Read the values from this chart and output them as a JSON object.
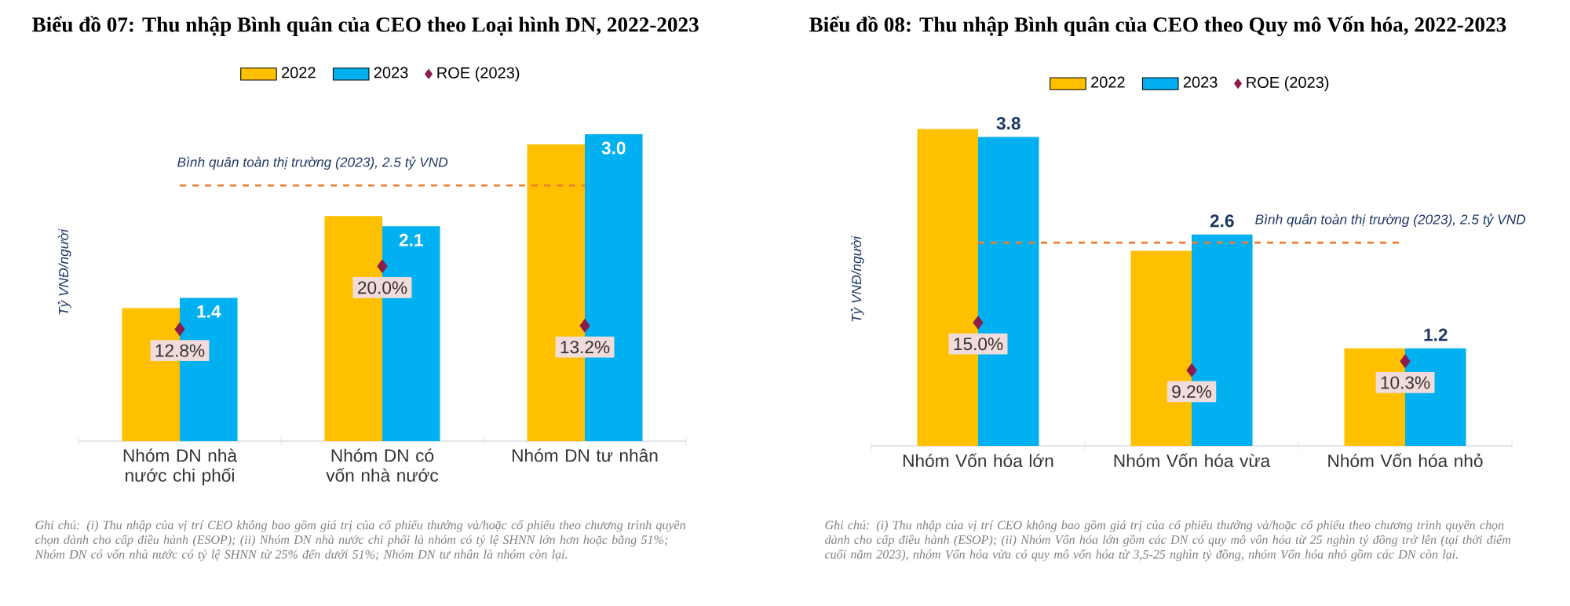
{
  "chart_data": [
    {
      "type": "bar",
      "title": "Biểu đồ 07: Thu nhập Bình quân của CEO theo Loại hình DN, 2022-2023",
      "ylabel": "Tỷ VNĐ/người",
      "categories": [
        "Nhóm DN nhà nước chi phối",
        "Nhóm DN có vốn nhà nước",
        "Nhóm DN tư nhân"
      ],
      "series": [
        {
          "name": "2022",
          "color": "#ffc000",
          "values": [
            1.3,
            2.2,
            2.9
          ]
        },
        {
          "name": "2023",
          "color": "#00b0f0",
          "values": [
            1.4,
            2.1,
            3.0
          ],
          "value_labels": [
            "1.4",
            "2.1",
            "3.0"
          ]
        },
        {
          "name": "ROE (2023)",
          "type": "scatter",
          "axis": "y2",
          "marker": "diamond",
          "color": "#8b1c4c",
          "values": [
            12.8,
            20.0,
            13.2
          ],
          "value_labels": [
            "12.8%",
            "20.0%",
            "13.2%"
          ]
        }
      ],
      "ref_lines": [
        {
          "axis": "y",
          "value": 2.5,
          "label": "Bình quân toàn thị trường (2023), 2.5 tỷ VND",
          "color": "#ed7d31",
          "line_style": "dashed"
        }
      ],
      "legend": "top",
      "annotations": [
        "Ghi chú: (i) Thu nhập của vị trí CEO không bao gồm giá trị của cổ phiếu thưởng và/hoặc cổ phiếu theo chương trình quyền chọn dành cho cấp điều hành (ESOP); (ii) Nhóm DN nhà nước chi phối là nhóm có tỷ lệ SHNN lớn hơn hoặc bằng 51%; Nhóm DN có vốn nhà nước có tỷ lệ SHNN từ 25% đến dưới 51%; Nhóm DN tư nhân là nhóm còn lại."
      ]
    },
    {
      "type": "bar",
      "title": "Biểu đồ 08: Thu nhập Bình quân của CEO theo Quy mô Vốn hóa, 2022-2023",
      "ylabel": "Tỷ VNĐ/người",
      "categories": [
        "Nhóm Vốn hóa lớn",
        "Nhóm Vốn hóa vừa",
        "Nhóm Vốn hóa nhỏ"
      ],
      "series": [
        {
          "name": "2022",
          "color": "#ffc000",
          "values": [
            3.9,
            2.4,
            1.2
          ]
        },
        {
          "name": "2023",
          "color": "#00b0f0",
          "values": [
            3.8,
            2.6,
            1.2
          ],
          "value_labels": [
            "3.8",
            "2.6",
            "1.2"
          ]
        },
        {
          "name": "ROE (2023)",
          "type": "scatter",
          "axis": "y2",
          "marker": "diamond",
          "color": "#8b1c4c",
          "values": [
            15.0,
            9.2,
            10.3
          ],
          "value_labels": [
            "15.0%",
            "9.2%",
            "10.3%"
          ]
        }
      ],
      "ref_lines": [
        {
          "axis": "y",
          "value": 2.5,
          "label": "Bình quân toàn thị trường (2023), 2.5 tỷ VND",
          "color": "#ed7d31",
          "line_style": "dashed"
        }
      ],
      "legend": "top",
      "annotations": [
        "Ghi chú: (i) Thu nhập của vị trí CEO không bao gồm giá trị của cổ phiếu thưởng và/hoặc cổ phiếu theo chương trình quyền chọn dành cho cấp điều hành (ESOP); (ii) Nhóm Vốn hóa lớn gồm các DN có quy mô vốn hóa từ 25 nghìn tỷ đồng trở lên (tại thời điểm cuối năm 2023), nhóm Vốn hóa vừa có quy mô vốn hóa từ 3,5-25 nghìn tỷ đồng, nhóm Vốn hóa nhỏ gồm các DN còn lại."
      ]
    }
  ]
}
